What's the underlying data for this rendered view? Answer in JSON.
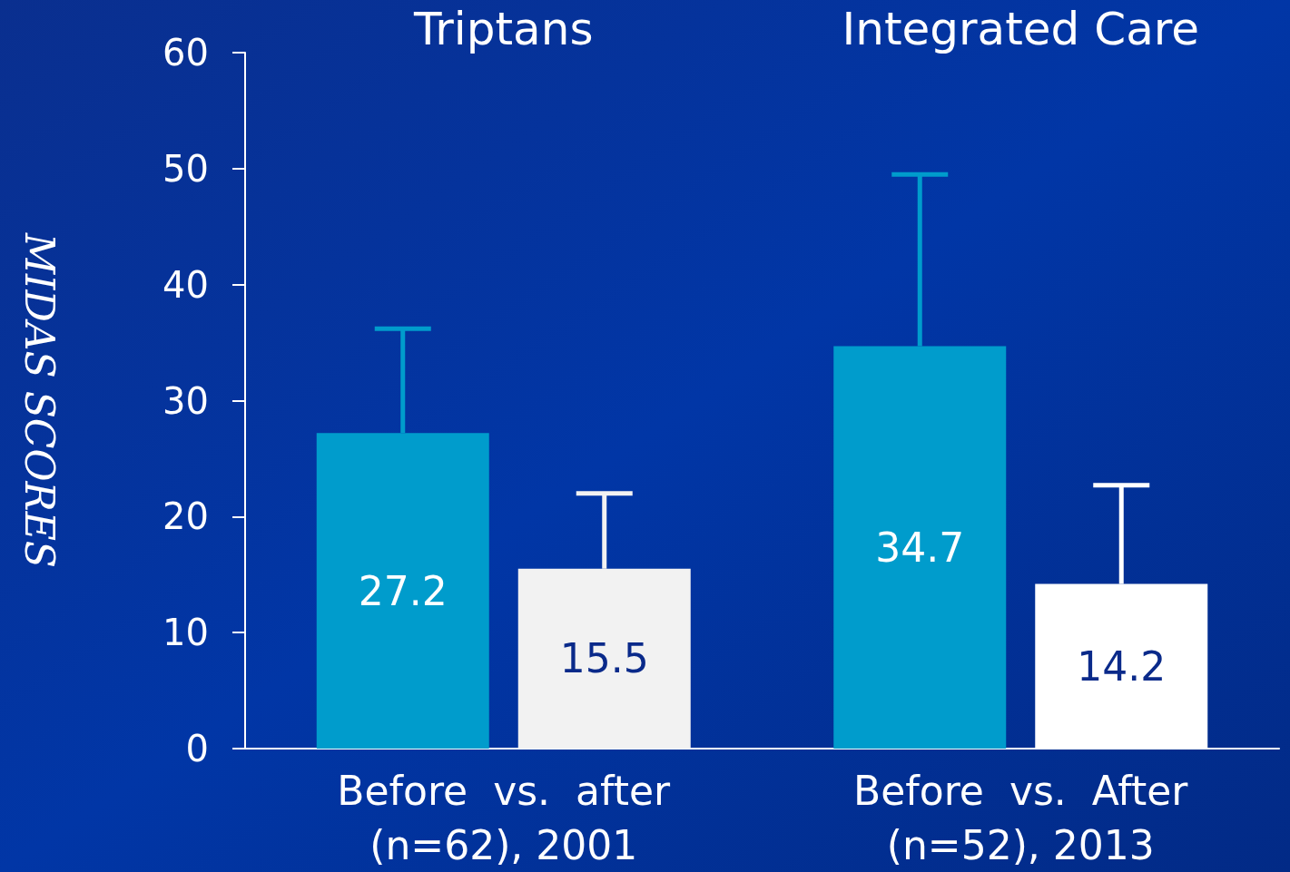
{
  "chart_data": {
    "type": "bar",
    "ylabel": "MIDAS SCORES",
    "categories": [
      "Before  vs.  after\n(n=62), 2001",
      "Before  vs.  After\n(n=52), 2013"
    ],
    "series": [
      {
        "color": "#009ccc",
        "values": [
          27.2,
          34.7
        ],
        "errors": [
          [
            27.2,
            36.2
          ],
          [
            34.7,
            49.5
          ]
        ]
      },
      {
        "colors": [
          "#f2f2f2",
          "#ffffff"
        ],
        "values": [
          15.5,
          14.2
        ],
        "errors": [
          [
            15.5,
            22
          ],
          [
            14.2,
            22.7
          ]
        ]
      }
    ],
    "annotations": [
      "Triptans",
      "Integrated Care"
    ],
    "ylim": [
      0,
      60
    ],
    "yticks": [
      0,
      10,
      20,
      30,
      40,
      50,
      60
    ],
    "data_labels": true,
    "grid": false
  }
}
